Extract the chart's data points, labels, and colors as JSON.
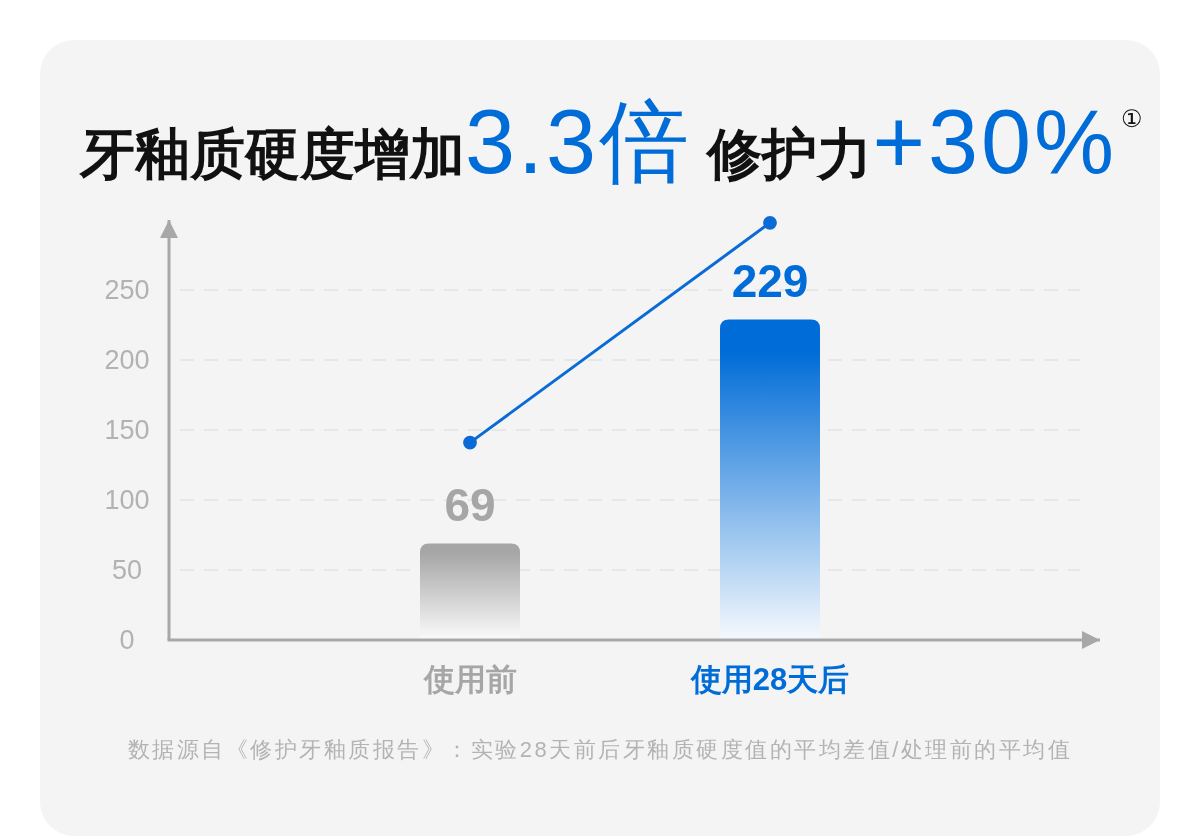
{
  "chart_data": {
    "type": "bar",
    "title": "牙釉质硬度增加3.3倍 修护力+30%$^{①}$",
    "categories": [
      "使用前",
      "使用28天后"
    ],
    "series": [
      {
        "colors": [
          "#a6a6a6",
          "#006cd7"
        ],
        "values": [
          69,
          229
        ],
        "value_labels": [
          "69",
          "229"
        ]
      },
      {
        "type": "line",
        "color": "#0a6bd6",
        "values": [
          141,
          298
        ]
      }
    ],
    "ylim": [
      0,
      300
    ],
    "yticks": [
      0,
      50,
      100,
      150,
      200,
      250
    ],
    "grid": "y",
    "marker": "circle",
    "annotations": [
      "数据源自《修护牙釉质报告》：实验28天前后牙釉质硬度值的平均差值/处理前的平均值"
    ]
  }
}
